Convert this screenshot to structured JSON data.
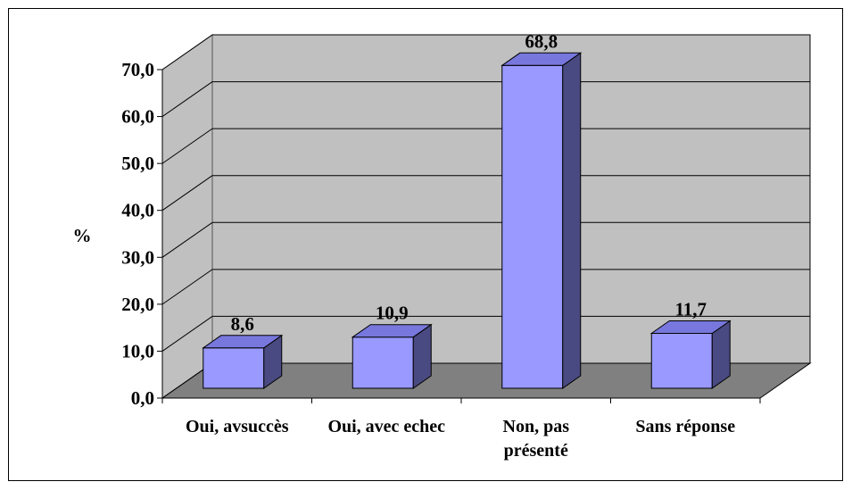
{
  "chart_data": {
    "type": "bar",
    "title": "",
    "xlabel": "",
    "ylabel": "%",
    "ylim": [
      0,
      70
    ],
    "yticks": [
      0,
      10,
      20,
      30,
      40,
      50,
      60,
      70
    ],
    "ytick_labels": [
      "0,0",
      "10,0",
      "20,0",
      "30,0",
      "40,0",
      "50,0",
      "60,0",
      "70,0"
    ],
    "categories": [
      [
        "Oui, avsuccès"
      ],
      [
        "Oui, avec echec"
      ],
      [
        "Non, pas",
        "présenté"
      ],
      [
        "Sans réponse"
      ]
    ],
    "values": [
      8.6,
      10.9,
      68.8,
      11.7
    ],
    "data_labels": [
      "8,6",
      "10,9",
      "68,8",
      "11,7"
    ],
    "grid": true,
    "three_d": true,
    "legend": "none",
    "colors": {
      "bar_front": "#9999ff",
      "bar_top": "#7777dd",
      "bar_side": "#4a4a82",
      "back_wall": "#c0c0c0",
      "side_wall": "#c0c0c0",
      "floor": "#808080",
      "gridline": "#000000"
    }
  }
}
